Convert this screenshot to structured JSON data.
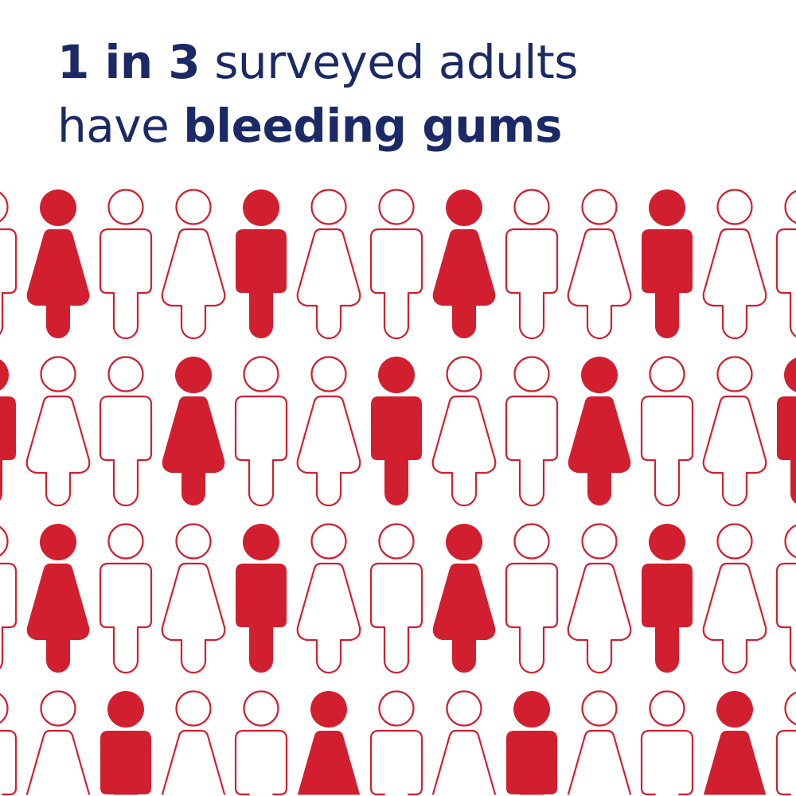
{
  "headline": {
    "line1_bold": "1 in 3",
    "line1_regular": " surveyed adults",
    "line2_regular": "have ",
    "line2_bold": "bleeding gums"
  },
  "colors": {
    "text": "#1b2a66",
    "figure": "#d21f2f",
    "background": "#ffffff"
  },
  "figures": {
    "column_genders": [
      "male",
      "female",
      "male",
      "female",
      "male",
      "female",
      "male",
      "female",
      "male",
      "female",
      "male",
      "female",
      "male"
    ],
    "rows_filled": [
      [
        false,
        true,
        false,
        false,
        true,
        false,
        false,
        true,
        false,
        false,
        true,
        false,
        false
      ],
      [
        true,
        false,
        false,
        true,
        false,
        false,
        true,
        false,
        false,
        true,
        false,
        false,
        true
      ],
      [
        false,
        true,
        false,
        false,
        true,
        false,
        false,
        true,
        false,
        false,
        true,
        false,
        false
      ],
      [
        false,
        false,
        true,
        false,
        false,
        true,
        false,
        false,
        true,
        false,
        false,
        true,
        false
      ]
    ]
  }
}
